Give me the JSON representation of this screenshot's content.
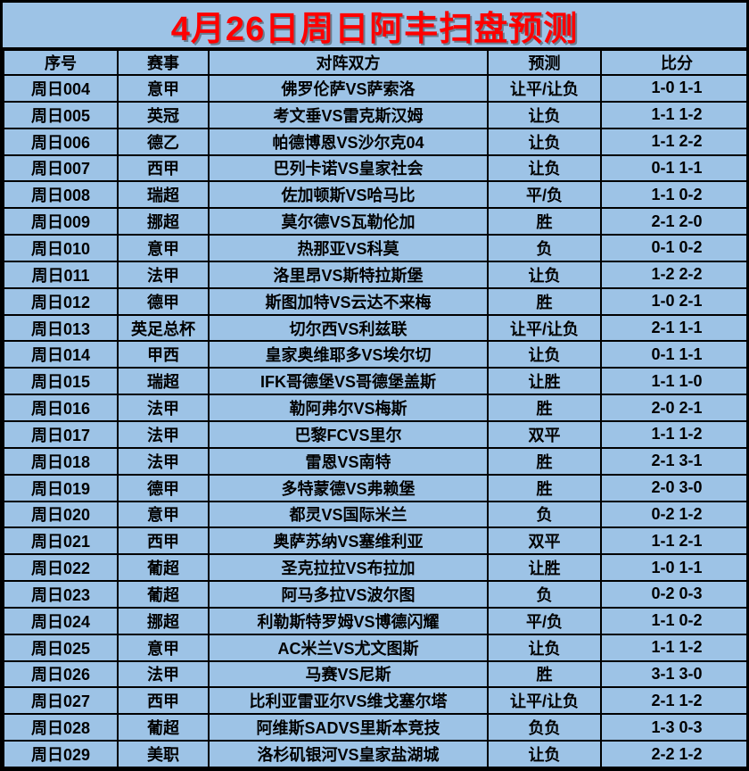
{
  "title": "4月26日周日阿丰扫盘预测",
  "colors": {
    "background": "#9DC3E6",
    "border": "#000000",
    "title_text": "#FF0000",
    "body_text": "#000000"
  },
  "table": {
    "headers": {
      "id": "序号",
      "league": "赛事",
      "match": "对阵双方",
      "prediction": "预测",
      "score": "比分"
    },
    "rows": [
      {
        "id": "周日004",
        "league": "意甲",
        "match": "佛罗伦萨VS萨索洛",
        "prediction": "让平/让负",
        "score": "1-0 1-1"
      },
      {
        "id": "周日005",
        "league": "英冠",
        "match": "考文垂VS雷克斯汉姆",
        "prediction": "让负",
        "score": "1-1 1-2"
      },
      {
        "id": "周日006",
        "league": "德乙",
        "match": "帕德博恩VS沙尔克04",
        "prediction": "让负",
        "score": "1-1 2-2"
      },
      {
        "id": "周日007",
        "league": "西甲",
        "match": "巴列卡诺VS皇家社会",
        "prediction": "让负",
        "score": "0-1 1-1"
      },
      {
        "id": "周日008",
        "league": "瑞超",
        "match": "佐加顿斯VS哈马比",
        "prediction": "平/负",
        "score": "1-1 0-2"
      },
      {
        "id": "周日009",
        "league": "挪超",
        "match": "莫尔德VS瓦勒伦加",
        "prediction": "胜",
        "score": "2-1 2-0"
      },
      {
        "id": "周日010",
        "league": "意甲",
        "match": "热那亚VS科莫",
        "prediction": "负",
        "score": "0-1 0-2"
      },
      {
        "id": "周日011",
        "league": "法甲",
        "match": "洛里昂VS斯特拉斯堡",
        "prediction": "让负",
        "score": "1-2 2-2"
      },
      {
        "id": "周日012",
        "league": "德甲",
        "match": "斯图加特VS云达不来梅",
        "prediction": "胜",
        "score": "1-0 2-1"
      },
      {
        "id": "周日013",
        "league": "英足总杯",
        "match": "切尔西VS利兹联",
        "prediction": "让平/让负",
        "score": "2-1 1-1"
      },
      {
        "id": "周日014",
        "league": "甲西",
        "match": "皇家奥维耶多VS埃尔切",
        "prediction": "让负",
        "score": "0-1 1-1"
      },
      {
        "id": "周日015",
        "league": "瑞超",
        "match": "IFK哥德堡VS哥德堡盖斯",
        "prediction": "让胜",
        "score": "1-1 1-0"
      },
      {
        "id": "周日016",
        "league": "法甲",
        "match": "勒阿弗尔VS梅斯",
        "prediction": "胜",
        "score": "2-0 2-1"
      },
      {
        "id": "周日017",
        "league": "法甲",
        "match": "巴黎FCVS里尔",
        "prediction": "双平",
        "score": "1-1 1-2"
      },
      {
        "id": "周日018",
        "league": "法甲",
        "match": "雷恩VS南特",
        "prediction": "胜",
        "score": "2-1 3-1"
      },
      {
        "id": "周日019",
        "league": "德甲",
        "match": "多特蒙德VS弗赖堡",
        "prediction": "胜",
        "score": "2-0 3-0"
      },
      {
        "id": "周日020",
        "league": "意甲",
        "match": "都灵VS国际米兰",
        "prediction": "负",
        "score": "0-2 1-2"
      },
      {
        "id": "周日021",
        "league": "西甲",
        "match": "奥萨苏纳VS塞维利亚",
        "prediction": "双平",
        "score": "1-1 2-1"
      },
      {
        "id": "周日022",
        "league": "葡超",
        "match": "圣克拉拉VS布拉加",
        "prediction": "让胜",
        "score": "1-0 1-1"
      },
      {
        "id": "周日023",
        "league": "葡超",
        "match": "阿马多拉VS波尔图",
        "prediction": "负",
        "score": "0-2 0-3"
      },
      {
        "id": "周日024",
        "league": "挪超",
        "match": "利勒斯特罗姆VS博德闪耀",
        "prediction": "平/负",
        "score": "1-1 0-2"
      },
      {
        "id": "周日025",
        "league": "意甲",
        "match": "AC米兰VS尤文图斯",
        "prediction": "让负",
        "score": "1-1 1-2"
      },
      {
        "id": "周日026",
        "league": "法甲",
        "match": "马赛VS尼斯",
        "prediction": "胜",
        "score": "3-1 3-0"
      },
      {
        "id": "周日027",
        "league": "西甲",
        "match": "比利亚雷亚尔VS维戈塞尔塔",
        "prediction": "让平/让负",
        "score": "2-1 1-2"
      },
      {
        "id": "周日028",
        "league": "葡超",
        "match": "阿维斯SADVS里斯本竞技",
        "prediction": "负负",
        "score": "1-3 0-3"
      },
      {
        "id": "周日029",
        "league": "美职",
        "match": "洛杉矶银河VS皇家盐湖城",
        "prediction": "让负",
        "score": "2-2 1-2"
      }
    ]
  }
}
